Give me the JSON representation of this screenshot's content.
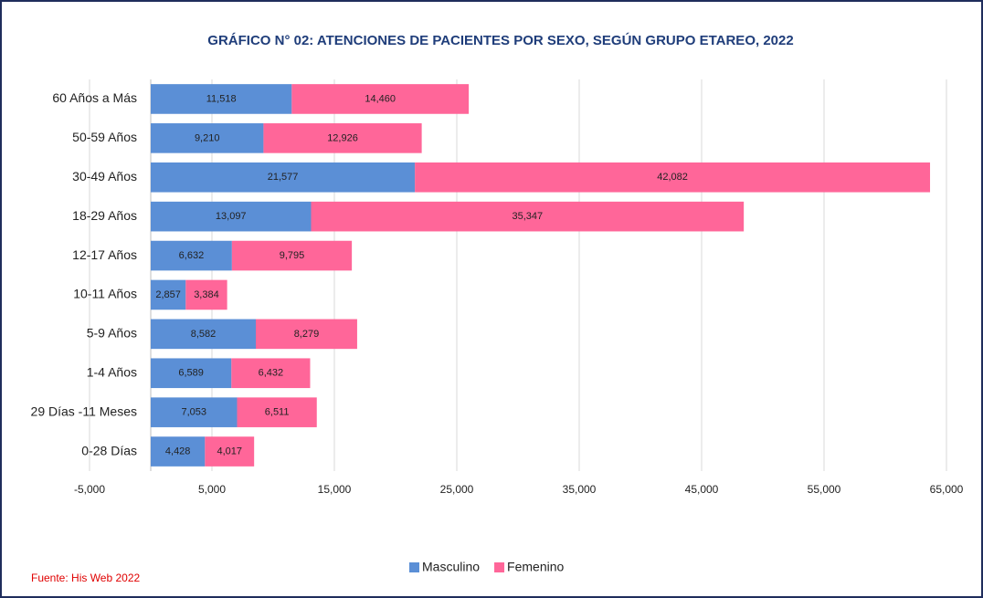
{
  "chart_data": {
    "type": "stacked_barh",
    "title": "GRÁFICO N° 02: ATENCIONES DE PACIENTES POR SEXO, SEGÚN GRUPO ETAREO, 2022",
    "categories": [
      "60 Años a Más",
      "50-59 Años",
      "30-49 Años",
      "18-29 Años",
      "12-17 Años",
      "10-11 Años",
      "5-9 Años",
      "1-4 Años",
      "29 Días -11 Meses",
      "0-28 Días"
    ],
    "series": [
      {
        "name": "Masculino",
        "color": "#5b8fd6",
        "values": [
          11518,
          9210,
          21577,
          13097,
          6632,
          2857,
          8582,
          6589,
          7053,
          4428
        ],
        "value_labels": [
          "11,518",
          "9,210",
          "21,577",
          "13,097",
          "6,632",
          "2,857",
          "8,582",
          "6,589",
          "7,053",
          "4,428"
        ]
      },
      {
        "name": "Femenino",
        "color": "#ff6699",
        "values": [
          14460,
          12926,
          42082,
          35347,
          9795,
          3384,
          8279,
          6432,
          6511,
          4017
        ],
        "value_labels": [
          "14,460",
          "12,926",
          "42,082",
          "35,347",
          "9,795",
          "3,384",
          "8,279",
          "6,432",
          "6,511",
          "4,017"
        ]
      }
    ],
    "xlim": [
      -5000,
      65000
    ],
    "xticks": [
      {
        "value": -5000,
        "label": "-5,000"
      },
      {
        "value": 5000,
        "label": "5,000"
      },
      {
        "value": 15000,
        "label": "15,000"
      },
      {
        "value": 25000,
        "label": "25,000"
      },
      {
        "value": 35000,
        "label": "35,000"
      },
      {
        "value": 45000,
        "label": "45,000"
      },
      {
        "value": 55000,
        "label": "55,000"
      },
      {
        "value": 65000,
        "label": "65,000"
      }
    ],
    "grid": true,
    "legend": "bottom",
    "source": "Fuente: His Web 2022"
  }
}
